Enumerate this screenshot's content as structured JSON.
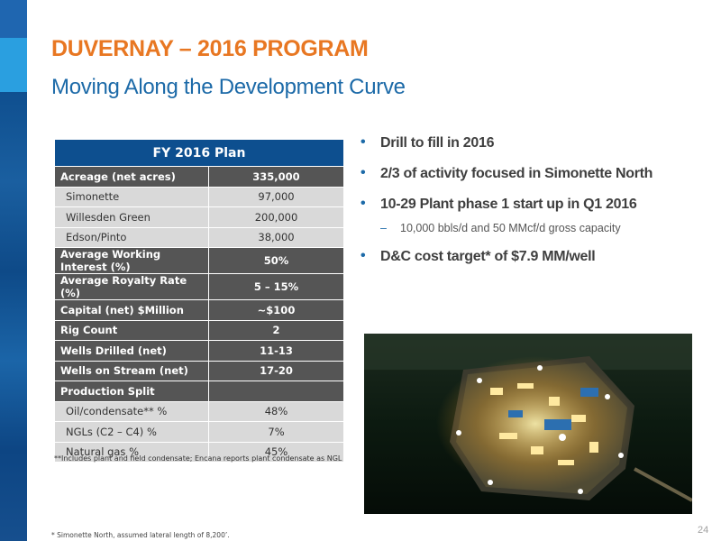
{
  "header": {
    "title": "DUVERNAY – 2016 PROGRAM",
    "subtitle": "Moving Along the Development Curve"
  },
  "table": {
    "heading": "FY 2016 Plan",
    "rows": [
      {
        "label": "Acreage (net acres)",
        "value": "335,000",
        "style": "dark"
      },
      {
        "label": "Simonette",
        "value": "97,000",
        "style": "light"
      },
      {
        "label": "Willesden Green",
        "value": "200,000",
        "style": "light"
      },
      {
        "label": "Edson/Pinto",
        "value": "38,000",
        "style": "light"
      },
      {
        "label": "Average Working Interest (%)",
        "value": "50%",
        "style": "dark"
      },
      {
        "label": "Average Royalty Rate (%)",
        "value": "5 – 15%",
        "style": "dark"
      },
      {
        "label": "Capital (net) $Million",
        "value": "~$100",
        "style": "dark"
      },
      {
        "label": "Rig Count",
        "value": "2",
        "style": "dark"
      },
      {
        "label": "Wells Drilled (net)",
        "value": "11-13",
        "style": "dark"
      },
      {
        "label": "Wells on Stream (net)",
        "value": "17-20",
        "style": "dark"
      },
      {
        "label": "Production Split",
        "value": "",
        "style": "dark"
      },
      {
        "label": "Oil/condensate** %",
        "value": "48%",
        "style": "light"
      },
      {
        "label": "NGLs (C2 – C4) %",
        "value": "7%",
        "style": "light"
      },
      {
        "label": "Natural gas %",
        "value": "45%",
        "style": "light"
      }
    ],
    "note": "**Includes plant and field condensate; Encana reports plant condensate as NGL"
  },
  "bullets": {
    "b1": "Drill to fill in 2016",
    "b2": "2/3 of activity focused in Simonette North",
    "b3": "10-29 Plant phase 1 start up in Q1 2016",
    "b3_sub": "10,000 bbls/d and 50 MMcf/d gross capacity",
    "b4": "D&C cost target* of $7.9 MM/well",
    "bullet_glyph": "•",
    "dash_glyph": "–"
  },
  "footer": {
    "footnote": "* Simonette North, assumed lateral length of 8,200’.",
    "page_number": "24"
  },
  "colors": {
    "title": "#e87722",
    "subtitle": "#1c6aa8",
    "table_header": "#0d4f8f",
    "table_dark_row": "#555555",
    "table_light_row": "#d9d9d9"
  }
}
